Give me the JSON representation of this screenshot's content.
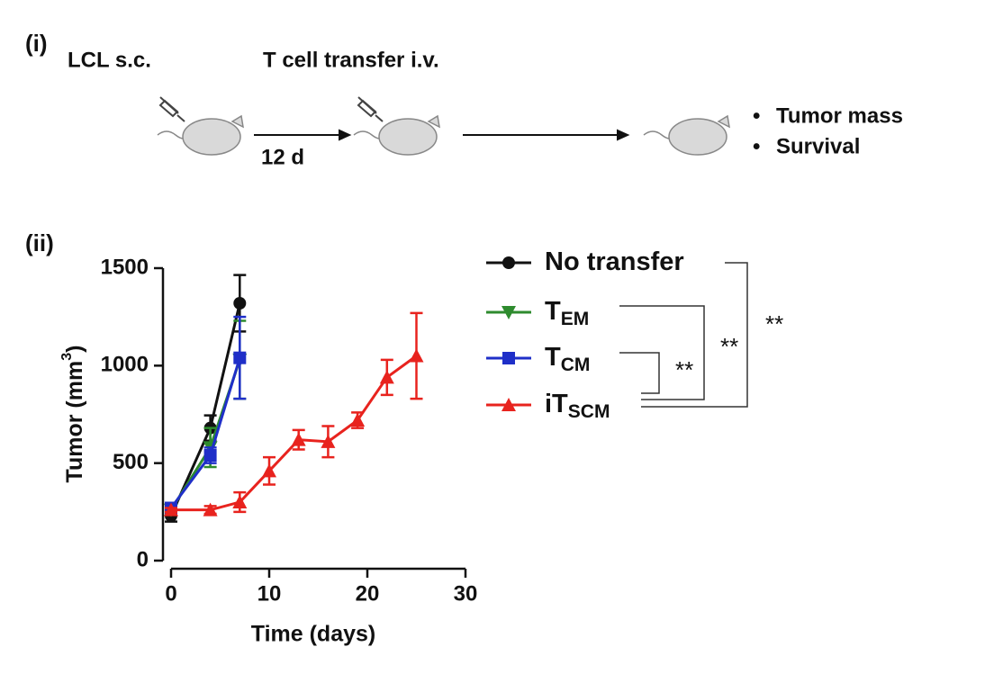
{
  "schematic": {
    "panel": "(i)",
    "step1": "LCL s.c.",
    "step2": "T cell transfer i.v.",
    "interval": "12 d",
    "readouts": [
      "Tumor mass",
      "Survival"
    ]
  },
  "chart_data": {
    "type": "line",
    "panel": "(ii)",
    "x_label": "Time (days)",
    "y_label": {
      "text": "Tumor (mm",
      "superscript": "3",
      "suffix": ")"
    },
    "xlim": [
      0,
      30
    ],
    "xticks": [
      0,
      10,
      20,
      30
    ],
    "ylim": [
      0,
      1500
    ],
    "yticks": [
      0,
      500,
      1000,
      1500
    ],
    "series": [
      {
        "name": "No transfer",
        "color": "#111111",
        "marker": "circle",
        "x": [
          0,
          4,
          7
        ],
        "values": [
          230,
          680,
          1320
        ],
        "errors": [
          30,
          65,
          145
        ]
      },
      {
        "name": "T",
        "subscript": "EM",
        "color": "#2e8b2e",
        "marker": "triangle-down",
        "x": [
          0,
          4,
          7
        ],
        "values": [
          260,
          580,
          1030
        ],
        "errors": [
          20,
          100,
          200
        ]
      },
      {
        "name": "T",
        "subscript": "CM",
        "color": "#1f2fc8",
        "marker": "square",
        "x": [
          0,
          4,
          7
        ],
        "values": [
          270,
          540,
          1040
        ],
        "errors": [
          20,
          40,
          210
        ]
      },
      {
        "name": "iT",
        "subscript": "SCM",
        "color": "#e8231e",
        "marker": "triangle-up",
        "x": [
          0,
          4,
          7,
          10,
          13,
          16,
          19,
          22,
          25
        ],
        "values": [
          260,
          260,
          300,
          460,
          620,
          610,
          720,
          940,
          1050
        ],
        "errors": [
          10,
          20,
          50,
          70,
          50,
          80,
          40,
          90,
          220
        ]
      }
    ],
    "significance": [
      "**",
      "**",
      "**"
    ]
  }
}
